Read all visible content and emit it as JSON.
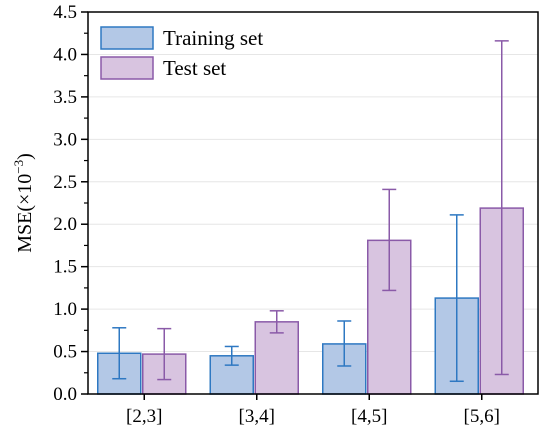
{
  "chart_data": {
    "type": "bar",
    "categories": [
      "[2,3]",
      "[3,4]",
      "[4,5]",
      "[5,6]"
    ],
    "series": [
      {
        "name": "Training set",
        "values": [
          0.48,
          0.45,
          0.59,
          1.13
        ],
        "error_low": [
          0.18,
          0.34,
          0.33,
          0.15
        ],
        "error_high": [
          0.78,
          0.56,
          0.86,
          2.11
        ],
        "fill": "#b3c8e6",
        "stroke": "#2e78c2"
      },
      {
        "name": "Test set",
        "values": [
          0.47,
          0.85,
          1.81,
          2.19
        ],
        "error_low": [
          0.17,
          0.72,
          1.22,
          0.23
        ],
        "error_high": [
          0.77,
          0.98,
          2.41,
          4.16
        ],
        "fill": "#d8c4e0",
        "stroke": "#8a5aa8"
      }
    ],
    "title": "",
    "xlabel": "",
    "ylabel_main": "MSE(×10",
    "ylabel_exp": "−3",
    "ylabel_close": ")",
    "ylim": [
      0,
      4.5
    ],
    "yticks": [
      "0.0",
      "0.5",
      "1.0",
      "1.5",
      "2.0",
      "2.5",
      "3.0",
      "3.5",
      "4.0",
      "4.5"
    ],
    "grid": true,
    "legend": "top-left"
  }
}
